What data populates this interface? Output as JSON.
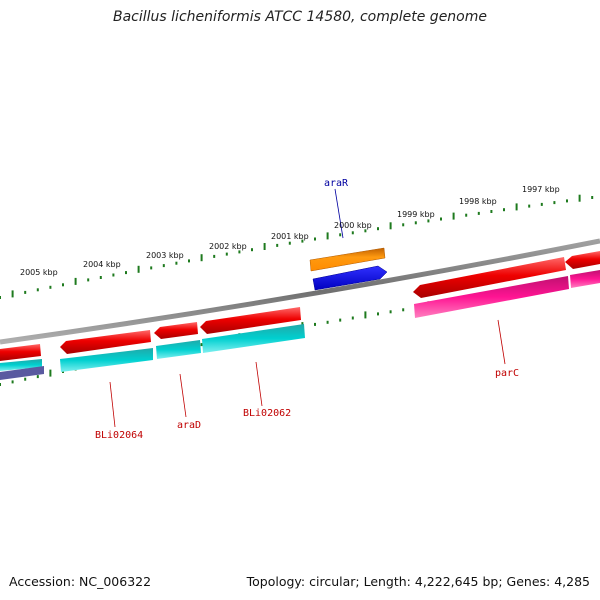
{
  "title": "Bacillus licheniformis ATCC 14580, complete genome",
  "accession": "Accession: NC_006322",
  "summary": "Topology: circular; Length: 4,222,645 bp; Genes: 4,285",
  "colors": {
    "backbone": "#808080",
    "ticks": "#1e7a1e",
    "forward_gene": "#e00000",
    "reverse_gene": "#00c8c8",
    "magenta_gene": "#ff1493",
    "orange_feature": "#ff8c00",
    "blue_feature": "#0000ee",
    "label_red": "#c00000",
    "label_blue": "#0000a0"
  },
  "scale_labels": [
    "2005 kbp",
    "2004 kbp",
    "2003 kbp",
    "2002 kbp",
    "2001 kbp",
    "2000 kbp",
    "1999 kbp",
    "1998 kbp",
    "1997 kbp"
  ],
  "gene_labels": [
    {
      "name": "araR",
      "color": "label_blue"
    },
    {
      "name": "BLi02064",
      "color": "label_red"
    },
    {
      "name": "araD",
      "color": "label_red"
    },
    {
      "name": "BLi02062",
      "color": "label_red"
    },
    {
      "name": "parC",
      "color": "label_red"
    }
  ]
}
